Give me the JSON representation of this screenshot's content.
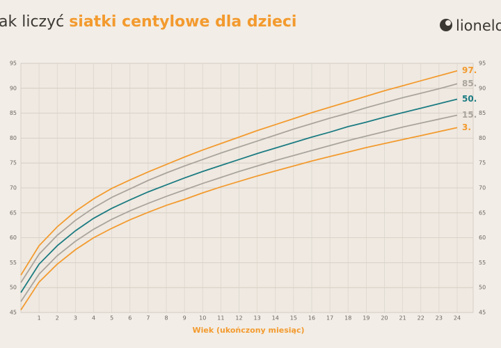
{
  "chart_data": {
    "type": "line",
    "title": "ak liczyć",
    "title_highlight": "siatki centylowe dla dzieci",
    "brand": "lionelo",
    "x_label": "Wiek (ukończony miesiąc)",
    "x": [
      0,
      1,
      2,
      3,
      4,
      5,
      6,
      7,
      8,
      9,
      10,
      11,
      12,
      13,
      14,
      15,
      16,
      17,
      18,
      19,
      20,
      21,
      22,
      23,
      24
    ],
    "xlim": [
      0,
      24
    ],
    "xticks": [
      1,
      2,
      3,
      4,
      5,
      6,
      7,
      8,
      9,
      10,
      11,
      12,
      13,
      14,
      15,
      16,
      17,
      18,
      19,
      20,
      21,
      22,
      23,
      24
    ],
    "ylim": [
      45,
      95
    ],
    "yticks": [
      45,
      50,
      55,
      60,
      65,
      70,
      75,
      80,
      85,
      90,
      95
    ],
    "grid": true,
    "series": [
      {
        "name": "97.",
        "color": "#f39a2e",
        "values": [
          52.5,
          58.4,
          62.2,
          65.3,
          67.8,
          69.9,
          71.6,
          73.2,
          74.7,
          76.2,
          77.6,
          78.9,
          80.2,
          81.5,
          82.7,
          83.9,
          85.1,
          86.2,
          87.3,
          88.4,
          89.5,
          90.5,
          91.5,
          92.5,
          93.5
        ]
      },
      {
        "name": "85.",
        "color": "#a9a49d",
        "values": [
          51.0,
          56.7,
          60.5,
          63.5,
          66.0,
          68.1,
          69.8,
          71.5,
          73.0,
          74.4,
          75.7,
          77.0,
          78.2,
          79.4,
          80.6,
          81.8,
          82.9,
          84.0,
          85.0,
          86.1,
          87.1,
          88.1,
          89.0,
          89.9,
          90.9
        ]
      },
      {
        "name": "50.",
        "color": "#1b7b82",
        "values": [
          49.0,
          54.7,
          58.4,
          61.4,
          63.9,
          65.9,
          67.6,
          69.2,
          70.6,
          72.0,
          73.3,
          74.5,
          75.7,
          76.9,
          78.0,
          79.1,
          80.2,
          81.2,
          82.3,
          83.2,
          84.2,
          85.1,
          86.0,
          86.9,
          87.8
        ]
      },
      {
        "name": "15.",
        "color": "#a9a49d",
        "values": [
          47.2,
          52.7,
          56.4,
          59.3,
          61.7,
          63.7,
          65.4,
          66.9,
          68.3,
          69.6,
          70.9,
          72.1,
          73.3,
          74.4,
          75.5,
          76.5,
          77.5,
          78.5,
          79.5,
          80.4,
          81.3,
          82.2,
          83.0,
          83.8,
          84.6
        ]
      },
      {
        "name": "3.",
        "color": "#f39a2e",
        "values": [
          45.5,
          51.1,
          54.7,
          57.6,
          60.0,
          61.9,
          63.6,
          65.1,
          66.5,
          67.7,
          69.0,
          70.2,
          71.3,
          72.4,
          73.4,
          74.4,
          75.4,
          76.3,
          77.2,
          78.1,
          78.9,
          79.7,
          80.5,
          81.3,
          82.1
        ]
      }
    ]
  }
}
